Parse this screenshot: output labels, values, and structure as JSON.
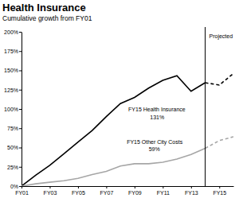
{
  "chart_data": {
    "type": "line",
    "title": "Health Insurance",
    "subtitle": "Cumulative growth from FY01",
    "x": [
      2001,
      2002,
      2003,
      2004,
      2005,
      2006,
      2007,
      2008,
      2009,
      2010,
      2011,
      2012,
      2013,
      2014,
      2015,
      2016
    ],
    "xlim": [
      2001,
      2016
    ],
    "xticks": [
      {
        "value": 2001,
        "label": "FY01"
      },
      {
        "value": 2003,
        "label": "FY03"
      },
      {
        "value": 2005,
        "label": "FY05"
      },
      {
        "value": 2007,
        "label": "FY07"
      },
      {
        "value": 2009,
        "label": "FY09"
      },
      {
        "value": 2011,
        "label": "FY11"
      },
      {
        "value": 2013,
        "label": "FY13"
      },
      {
        "value": 2015,
        "label": "FY15"
      }
    ],
    "ylim": [
      0,
      200
    ],
    "yticks": [
      {
        "value": 0,
        "label": "0%"
      },
      {
        "value": 25,
        "label": "25%"
      },
      {
        "value": 50,
        "label": "50%"
      },
      {
        "value": 75,
        "label": "75%"
      },
      {
        "value": 100,
        "label": "100%"
      },
      {
        "value": 125,
        "label": "125%"
      },
      {
        "value": 150,
        "label": "150%"
      },
      {
        "value": 175,
        "label": "175%"
      },
      {
        "value": 200,
        "label": "200%"
      }
    ],
    "grid": false,
    "series": [
      {
        "color": "#000000",
        "line_style": "solid",
        "values": [
          0,
          14,
          27,
          42,
          57,
          72,
          90,
          107,
          115,
          127,
          137,
          143,
          123,
          134,
          null,
          null
        ]
      },
      {
        "color": "#000000",
        "line_style": "dashed",
        "values": [
          null,
          null,
          null,
          null,
          null,
          null,
          null,
          null,
          null,
          null,
          null,
          null,
          null,
          134,
          131,
          146
        ]
      },
      {
        "color": "#a6a6a6",
        "line_style": "solid",
        "values": [
          0,
          3,
          5,
          7,
          10,
          15,
          19,
          26,
          29,
          29,
          31,
          35,
          41,
          49,
          null,
          null
        ]
      },
      {
        "color": "#a6a6a6",
        "line_style": "dashed",
        "values": [
          null,
          null,
          null,
          null,
          null,
          null,
          null,
          null,
          null,
          null,
          null,
          null,
          null,
          49,
          59,
          64
        ]
      }
    ],
    "annotations": [
      {
        "text": "FY15 Health Insurance",
        "value": 131,
        "label": "131%"
      },
      {
        "text": "FY15 Other City Costs",
        "value": 59,
        "label": "59%"
      },
      {
        "text": "Projected",
        "x": 2014
      }
    ]
  }
}
